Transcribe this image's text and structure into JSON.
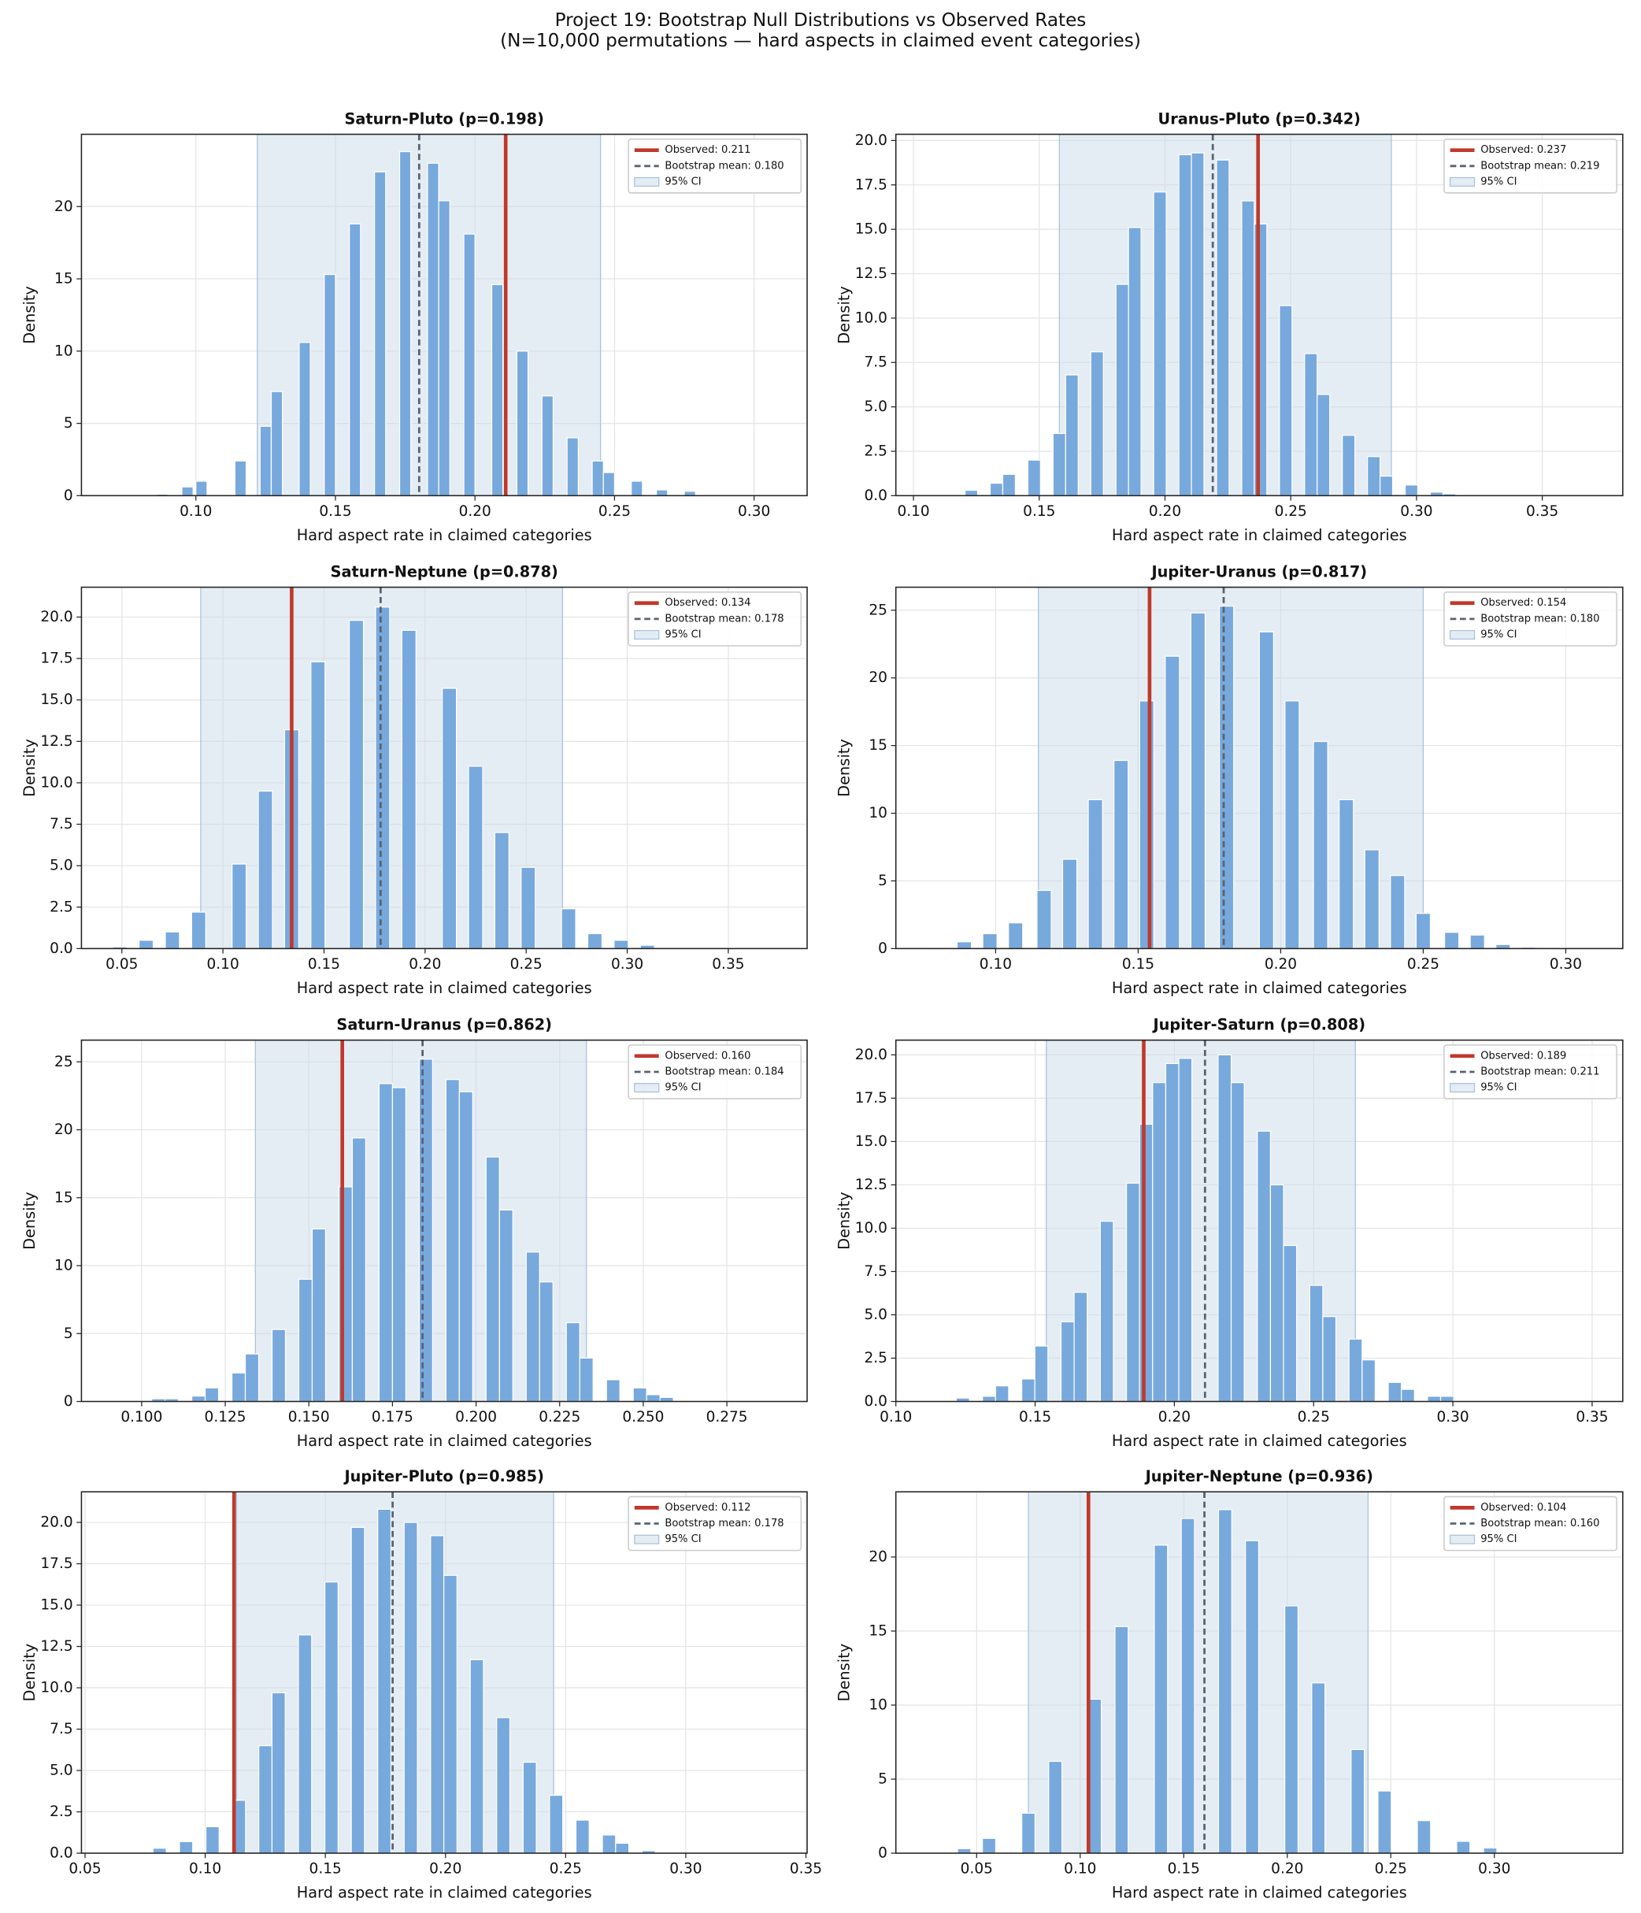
{
  "title": "Project 19: Bootstrap Null Distributions vs Observed Rates",
  "subtitle": "(N=10,000 permutations — hard aspects in claimed event categories)",
  "chart_data": [
    {
      "type": "histogram",
      "title": "Saturn-Pluto  (p=0.198)",
      "xlabel": "Hard aspect rate in claimed categories",
      "ylabel": "Density",
      "color": "#78a9dd",
      "grid": true,
      "legend": "upper right",
      "bins": [
        0.086,
        0.09,
        0.095,
        0.099,
        0.1,
        0.104,
        0.114,
        0.118,
        0.123,
        0.127,
        0.131,
        0.137,
        0.141,
        0.146,
        0.15,
        0.155,
        0.159,
        0.164,
        0.168,
        0.173,
        0.177,
        0.183,
        0.187,
        0.191,
        0.196,
        0.2,
        0.206,
        0.21,
        0.215,
        0.219,
        0.224,
        0.228,
        0.233,
        0.237,
        0.242,
        0.246,
        0.25,
        0.256,
        0.26,
        0.265,
        0.269,
        0.275,
        0.279
      ],
      "values": [
        0.1,
        0,
        0.6,
        0,
        1.0,
        0,
        2.4,
        0,
        4.8,
        7.2,
        0,
        10.6,
        0,
        15.3,
        0,
        18.8,
        0,
        22.4,
        0,
        23.8,
        0,
        23.0,
        20.4,
        0,
        18.1,
        0,
        14.6,
        0,
        10.0,
        0,
        6.9,
        0,
        4.0,
        0,
        2.4,
        1.6,
        0,
        1.0,
        0,
        0.4,
        0,
        0.3
      ],
      "observed": {
        "value": 0.211,
        "label": "Observed: 0.211",
        "color": "#c0392b"
      },
      "bootstrap_mean": {
        "value": 0.18,
        "label": "Bootstrap mean: 0.180",
        "color": "#5a6270"
      },
      "ci": {
        "low": 0.122,
        "high": 0.245,
        "label": "95% CI",
        "color": "#c9d9e9"
      },
      "xlim": [
        0.059,
        0.319
      ],
      "ylim": [
        0,
        25
      ],
      "xticks": [
        {
          "value": 0.1,
          "label": "0.10"
        },
        0.15,
        {
          "value": 0.2,
          "label": "0.20"
        },
        0.25,
        {
          "value": 0.3,
          "label": "0.30"
        }
      ],
      "yticks": [
        0,
        5,
        10,
        15,
        20
      ]
    },
    {
      "type": "histogram",
      "title": "Uranus-Pluto  (p=0.342)",
      "xlabel": "Hard aspect rate in claimed categories",
      "ylabel": "Density",
      "color": "#78a9dd",
      "grid": true,
      "legend": "upper right",
      "bins": [
        0.1005,
        0.1055,
        0.1105,
        0.1155,
        0.1205,
        0.1255,
        0.1305,
        0.1355,
        0.1405,
        0.1455,
        0.1505,
        0.1555,
        0.1605,
        0.1655,
        0.1705,
        0.1755,
        0.1805,
        0.1855,
        0.1905,
        0.1955,
        0.2005,
        0.2055,
        0.2105,
        0.2155,
        0.2205,
        0.2255,
        0.2305,
        0.2355,
        0.2405,
        0.2455,
        0.2505,
        0.2555,
        0.2605,
        0.2655,
        0.2705,
        0.2755,
        0.2805,
        0.2855,
        0.2905,
        0.2955,
        0.3005,
        0.3055,
        0.3105,
        0.3155
      ],
      "values": [
        0.05,
        0,
        0,
        0,
        0.3,
        0,
        0.7,
        1.2,
        0,
        2.0,
        0,
        3.5,
        6.8,
        0,
        8.1,
        0,
        11.9,
        15.1,
        0,
        17.1,
        0,
        19.2,
        19.3,
        0,
        18.9,
        0,
        16.6,
        15.3,
        0,
        10.7,
        0,
        8.0,
        5.7,
        0,
        3.4,
        0,
        2.2,
        1.1,
        0,
        0.6,
        0,
        0.2,
        0.1
      ],
      "observed": {
        "value": 0.237,
        "label": "Observed: 0.237",
        "color": "#c0392b"
      },
      "bootstrap_mean": {
        "value": 0.219,
        "label": "Bootstrap mean: 0.219",
        "color": "#5a6270"
      },
      "ci": {
        "low": 0.158,
        "high": 0.29,
        "label": "95% CI",
        "color": "#c9d9e9"
      },
      "xlim": [
        0.093,
        0.382
      ],
      "ylim": [
        0,
        20.35
      ],
      "xticks": [
        {
          "value": 0.1,
          "label": "0.10"
        },
        0.15,
        {
          "value": 0.2,
          "label": "0.20"
        },
        0.25,
        {
          "value": 0.3,
          "label": "0.30"
        },
        0.35
      ],
      "yticks": [
        {
          "value": 0,
          "label": "0.0"
        },
        2.5,
        {
          "value": 5,
          "label": "5.0"
        },
        7.5,
        {
          "value": 10,
          "label": "10.0"
        },
        12.5,
        {
          "value": 15,
          "label": "15.0"
        },
        17.5,
        {
          "value": 20,
          "label": "20.0"
        }
      ]
    },
    {
      "type": "histogram",
      "title": "Saturn-Neptune  (p=0.878)",
      "xlabel": "Hard aspect rate in claimed categories",
      "ylabel": "Density",
      "color": "#78a9dd",
      "grid": true,
      "legend": "upper right",
      "bins": [
        0.0455,
        0.0525,
        0.0585,
        0.0655,
        0.0715,
        0.0785,
        0.0845,
        0.0915,
        0.1045,
        0.1115,
        0.1175,
        0.1245,
        0.1305,
        0.1375,
        0.1435,
        0.1505,
        0.1625,
        0.1695,
        0.1755,
        0.1825,
        0.1885,
        0.1955,
        0.2085,
        0.2155,
        0.2215,
        0.2285,
        0.2345,
        0.2415,
        0.2475,
        0.2545,
        0.2675,
        0.2745,
        0.2805,
        0.2875,
        0.2935,
        0.3005,
        0.3065,
        0.3135
      ],
      "values": [
        0.1,
        0,
        0.5,
        0,
        1.0,
        0,
        2.2,
        0,
        5.1,
        0,
        9.5,
        0,
        13.2,
        0,
        17.3,
        0,
        19.8,
        0,
        20.6,
        0,
        19.2,
        0,
        15.7,
        0,
        11.0,
        0,
        7.0,
        0,
        4.9,
        0,
        2.4,
        0,
        0.9,
        0,
        0.5,
        0,
        0.2
      ],
      "observed": {
        "value": 0.134,
        "label": "Observed: 0.134",
        "color": "#c0392b"
      },
      "bootstrap_mean": {
        "value": 0.178,
        "label": "Bootstrap mean: 0.178",
        "color": "#5a6270"
      },
      "ci": {
        "low": 0.089,
        "high": 0.268,
        "label": "95% CI",
        "color": "#c9d9e9"
      },
      "xlim": [
        0.03,
        0.389
      ],
      "ylim": [
        0,
        21.8
      ],
      "xticks": [
        0.05,
        {
          "value": 0.1,
          "label": "0.10"
        },
        0.15,
        {
          "value": 0.2,
          "label": "0.20"
        },
        0.25,
        {
          "value": 0.3,
          "label": "0.30"
        },
        0.35
      ],
      "yticks": [
        {
          "value": 0,
          "label": "0.0"
        },
        2.5,
        {
          "value": 5,
          "label": "5.0"
        },
        7.5,
        {
          "value": 10,
          "label": "10.0"
        },
        12.5,
        {
          "value": 15,
          "label": "15.0"
        },
        17.5,
        {
          "value": 20,
          "label": "20.0"
        }
      ]
    },
    {
      "type": "histogram",
      "title": "Jupiter-Uranus  (p=0.817)",
      "xlabel": "Hard aspect rate in claimed categories",
      "ylabel": "Density",
      "color": "#78a9dd",
      "grid": true,
      "legend": "upper right",
      "bins": [
        0.0765,
        0.0815,
        0.0865,
        0.0915,
        0.0955,
        0.1005,
        0.1045,
        0.1095,
        0.1145,
        0.1195,
        0.1235,
        0.1285,
        0.1325,
        0.1375,
        0.1415,
        0.1465,
        0.1505,
        0.1555,
        0.1595,
        0.1645,
        0.1685,
        0.1735,
        0.1785,
        0.1835,
        0.1925,
        0.1975,
        0.2015,
        0.2065,
        0.2115,
        0.2165,
        0.2205,
        0.2255,
        0.2295,
        0.2345,
        0.2385,
        0.2435,
        0.2475,
        0.2525,
        0.2575,
        0.2625,
        0.2665,
        0.2715,
        0.2755,
        0.2805,
        0.2845,
        0.2895,
        0.2935,
        0.2985
      ],
      "values": [
        0.05,
        0,
        0.5,
        0,
        1.1,
        0,
        1.9,
        0,
        4.3,
        0,
        6.6,
        0,
        11.0,
        0,
        13.9,
        0,
        18.3,
        0,
        21.6,
        0,
        24.8,
        0,
        25.3,
        0,
        23.4,
        0,
        18.3,
        0,
        15.3,
        0,
        11.0,
        0,
        7.3,
        0,
        5.4,
        0,
        2.6,
        0,
        1.2,
        0,
        1.0,
        0,
        0.3,
        0,
        0.1,
        0,
        0.05
      ],
      "observed": {
        "value": 0.154,
        "label": "Observed: 0.154",
        "color": "#c0392b"
      },
      "bootstrap_mean": {
        "value": 0.18,
        "label": "Bootstrap mean: 0.180",
        "color": "#5a6270"
      },
      "ci": {
        "low": 0.115,
        "high": 0.25,
        "label": "95% CI",
        "color": "#c9d9e9"
      },
      "xlim": [
        0.065,
        0.32
      ],
      "ylim": [
        0,
        26.7
      ],
      "xticks": [
        {
          "value": 0.1,
          "label": "0.10"
        },
        0.15,
        {
          "value": 0.2,
          "label": "0.20"
        },
        0.25,
        {
          "value": 0.3,
          "label": "0.30"
        }
      ],
      "yticks": [
        0,
        5,
        10,
        15,
        20,
        25
      ]
    },
    {
      "type": "histogram",
      "title": "Saturn-Uranus  (p=0.862)",
      "xlabel": "Hard aspect rate in claimed categories",
      "ylabel": "Density",
      "color": "#78a9dd",
      "grid": true,
      "legend": "upper right",
      "bins": [
        0.103,
        0.107,
        0.111,
        0.115,
        0.119,
        0.123,
        0.127,
        0.131,
        0.135,
        0.139,
        0.143,
        0.147,
        0.151,
        0.155,
        0.159,
        0.163,
        0.167,
        0.171,
        0.175,
        0.179,
        0.183,
        0.187,
        0.191,
        0.195,
        0.199,
        0.203,
        0.207,
        0.211,
        0.215,
        0.219,
        0.223,
        0.227,
        0.231,
        0.235,
        0.239,
        0.243,
        0.247,
        0.251,
        0.255,
        0.259
      ],
      "values": [
        0.2,
        0.2,
        0,
        0.4,
        1.0,
        0,
        2.1,
        3.5,
        0,
        5.3,
        0,
        9.0,
        12.7,
        0,
        15.8,
        19.4,
        0,
        23.4,
        23.1,
        0,
        25.2,
        0,
        23.7,
        22.8,
        0,
        18.0,
        14.1,
        0,
        11.0,
        8.8,
        0,
        5.8,
        3.2,
        0,
        1.6,
        0,
        1.0,
        0.5,
        0.3
      ],
      "observed": {
        "value": 0.16,
        "label": "Observed: 0.160",
        "color": "#c0392b"
      },
      "bootstrap_mean": {
        "value": 0.184,
        "label": "Bootstrap mean: 0.184",
        "color": "#5a6270"
      },
      "ci": {
        "low": 0.134,
        "high": 0.233,
        "label": "95% CI",
        "color": "#c9d9e9"
      },
      "xlim": [
        0.082,
        0.299
      ],
      "ylim": [
        0,
        26.6
      ],
      "xticks": [
        {
          "value": 0.1,
          "label": "0.100"
        },
        0.125,
        {
          "value": 0.15,
          "label": "0.150"
        },
        0.175,
        {
          "value": 0.2,
          "label": "0.200"
        },
        0.225,
        {
          "value": 0.25,
          "label": "0.250"
        },
        0.275
      ],
      "yticks": [
        0,
        5,
        10,
        15,
        20,
        25
      ]
    },
    {
      "type": "histogram",
      "title": "Jupiter-Saturn  (p=0.808)",
      "xlabel": "Hard aspect rate in claimed categories",
      "ylabel": "Density",
      "color": "#78a9dd",
      "grid": true,
      "legend": "upper right",
      "bins": [
        0.1217,
        0.1264,
        0.1311,
        0.1358,
        0.1405,
        0.1452,
        0.1499,
        0.1546,
        0.1593,
        0.164,
        0.1687,
        0.1734,
        0.1781,
        0.1828,
        0.1875,
        0.1922,
        0.1969,
        0.2016,
        0.2063,
        0.211,
        0.2157,
        0.2204,
        0.2251,
        0.2298,
        0.2345,
        0.2392,
        0.2439,
        0.2486,
        0.2533,
        0.258,
        0.2627,
        0.2674,
        0.2721,
        0.2768,
        0.2815,
        0.2862,
        0.2909,
        0.2956,
        0.3003
      ],
      "values": [
        0.2,
        0,
        0.3,
        0.9,
        0,
        1.3,
        3.2,
        0,
        4.6,
        6.3,
        0,
        10.4,
        0,
        12.6,
        16.0,
        18.4,
        19.5,
        19.8,
        0,
        0,
        20.0,
        18.4,
        0,
        15.6,
        12.5,
        9.0,
        0,
        6.7,
        4.9,
        0,
        3.6,
        2.4,
        0,
        1.1,
        0.7,
        0,
        0.3,
        0.3
      ],
      "observed": {
        "value": 0.189,
        "label": "Observed: 0.189",
        "color": "#c0392b"
      },
      "bootstrap_mean": {
        "value": 0.211,
        "label": "Bootstrap mean: 0.211",
        "color": "#5a6270"
      },
      "ci": {
        "low": 0.154,
        "high": 0.265,
        "label": "95% CI",
        "color": "#c9d9e9"
      },
      "xlim": [
        0.1,
        0.361
      ],
      "ylim": [
        0,
        20.85
      ],
      "xticks": [
        {
          "value": 0.1,
          "label": "0.10"
        },
        0.15,
        {
          "value": 0.2,
          "label": "0.20"
        },
        0.25,
        {
          "value": 0.3,
          "label": "0.30"
        },
        0.35
      ],
      "yticks": [
        {
          "value": 0,
          "label": "0.0"
        },
        2.5,
        {
          "value": 5,
          "label": "5.0"
        },
        7.5,
        {
          "value": 10,
          "label": "10.0"
        },
        12.5,
        {
          "value": 15,
          "label": "15.0"
        },
        17.5,
        {
          "value": 20,
          "label": "20.0"
        }
      ]
    },
    {
      "type": "histogram",
      "title": "Jupiter-Pluto  (p=0.985)",
      "xlabel": "Hard aspect rate in claimed categories",
      "ylabel": "Density",
      "color": "#78a9dd",
      "grid": true,
      "legend": "upper right",
      "bins": [
        0.0783,
        0.0838,
        0.0893,
        0.0948,
        0.1003,
        0.1058,
        0.1113,
        0.1168,
        0.1223,
        0.1278,
        0.1333,
        0.1388,
        0.1443,
        0.1498,
        0.1553,
        0.1608,
        0.1663,
        0.1718,
        0.1773,
        0.1828,
        0.1883,
        0.1938,
        0.1993,
        0.2048,
        0.2103,
        0.2158,
        0.2213,
        0.2268,
        0.2323,
        0.2378,
        0.2433,
        0.2488,
        0.2543,
        0.2598,
        0.2653,
        0.2708,
        0.2763,
        0.2818,
        0.2873
      ],
      "values": [
        0.3,
        0,
        0.7,
        0,
        1.6,
        0,
        3.2,
        0,
        6.5,
        9.7,
        0,
        13.2,
        0,
        16.4,
        0,
        19.7,
        0,
        20.8,
        0,
        20.0,
        0,
        19.2,
        16.8,
        0,
        11.7,
        0,
        8.2,
        0,
        5.5,
        0,
        3.5,
        0,
        2.0,
        0,
        1.1,
        0.6,
        0,
        0.15
      ],
      "observed": {
        "value": 0.112,
        "label": "Observed: 0.112",
        "color": "#c0392b"
      },
      "bootstrap_mean": {
        "value": 0.178,
        "label": "Bootstrap mean: 0.178",
        "color": "#5a6270"
      },
      "ci": {
        "low": 0.113,
        "high": 0.245,
        "label": "95% CI",
        "color": "#c9d9e9"
      },
      "xlim": [
        0.0485,
        0.3505
      ],
      "ylim": [
        0,
        21.85
      ],
      "xticks": [
        0.05,
        {
          "value": 0.1,
          "label": "0.10"
        },
        0.15,
        {
          "value": 0.2,
          "label": "0.20"
        },
        0.25,
        {
          "value": 0.3,
          "label": "0.30"
        },
        0.35
      ],
      "yticks": [
        {
          "value": 0,
          "label": "0.0"
        },
        2.5,
        {
          "value": 5,
          "label": "5.0"
        },
        7.5,
        {
          "value": 10,
          "label": "10.0"
        },
        12.5,
        {
          "value": 15,
          "label": "15.0"
        },
        17.5,
        {
          "value": 20,
          "label": "20.0"
        }
      ]
    },
    {
      "type": "histogram",
      "title": "Jupiter-Neptune  (p=0.936)",
      "xlabel": "Hard aspect rate in claimed categories",
      "ylabel": "Density",
      "color": "#78a9dd",
      "grid": true,
      "legend": "upper right",
      "bins": [
        0.0278,
        0.0342,
        0.0408,
        0.0472,
        0.0528,
        0.0592,
        0.0718,
        0.0782,
        0.0848,
        0.0912,
        0.1038,
        0.1102,
        0.1168,
        0.1232,
        0.1358,
        0.1422,
        0.1488,
        0.1552,
        0.1668,
        0.1732,
        0.1798,
        0.1862,
        0.1988,
        0.2052,
        0.2118,
        0.2182,
        0.2308,
        0.2372,
        0.2438,
        0.2502,
        0.2628,
        0.2692,
        0.2818,
        0.2882,
        0.2948,
        0.3012
      ],
      "values": [
        0.05,
        0,
        0.3,
        0,
        1.0,
        0,
        2.7,
        0,
        6.2,
        0,
        10.4,
        0,
        15.3,
        0,
        20.8,
        0,
        22.6,
        0,
        23.2,
        0,
        21.1,
        0,
        16.7,
        0,
        11.5,
        0,
        7.0,
        0,
        4.2,
        0,
        2.2,
        0,
        0.8,
        0,
        0.35
      ],
      "observed": {
        "value": 0.104,
        "label": "Observed: 0.104",
        "color": "#c0392b"
      },
      "bootstrap_mean": {
        "value": 0.16,
        "label": "Bootstrap mean: 0.160",
        "color": "#5a6270"
      },
      "ci": {
        "low": 0.075,
        "high": 0.239,
        "label": "95% CI",
        "color": "#c9d9e9"
      },
      "xlim": [
        0.011,
        0.362
      ],
      "ylim": [
        0,
        24.4
      ],
      "xticks": [
        0.05,
        {
          "value": 0.1,
          "label": "0.10"
        },
        0.15,
        {
          "value": 0.2,
          "label": "0.20"
        },
        0.25,
        {
          "value": 0.3,
          "label": "0.30"
        }
      ],
      "yticks": [
        0,
        5,
        10,
        15,
        20
      ]
    }
  ]
}
